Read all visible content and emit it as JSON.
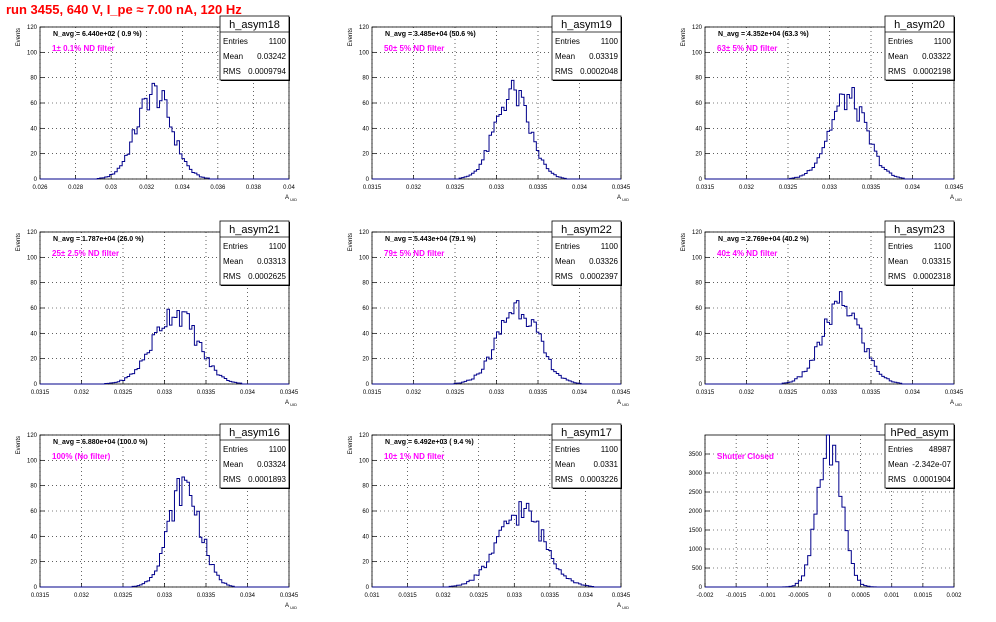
{
  "window_title": "run 3455,   640 V, I_pe ≈ 7.00 nA, 120 Hz",
  "colors": {
    "hist": "#00008b",
    "annotation": "#ff00ff",
    "title": "#ff0000",
    "axis": "#000000"
  },
  "chart_data": [
    {
      "type": "bar",
      "name": "h_asym18",
      "stats": {
        "entries": "1100",
        "mean": "0.03242",
        "rms": "0.0009794"
      },
      "navg": "N_avg = 6.440e+02 ( 0.9 %)",
      "filter": "1± 0.1% ND filter",
      "ylabel": "Events",
      "xlabel": "A_UID",
      "xlim": [
        0.026,
        0.04
      ],
      "ylim": [
        0,
        120
      ],
      "xticks": [
        "0.026",
        "0.028",
        "0.03",
        "0.032",
        "0.034",
        "0.036",
        "0.038",
        "0.04"
      ],
      "yticks": [
        "0",
        "20",
        "40",
        "60",
        "80",
        "100",
        "120"
      ],
      "mean": 0.03242,
      "rms": 0.0009794,
      "peak": 68,
      "bins": 100
    },
    {
      "type": "bar",
      "name": "h_asym19",
      "stats": {
        "entries": "1100",
        "mean": "0.03319",
        "rms": "0.0002048"
      },
      "navg": "N_avg = 3.485e+04 (50.6 %)",
      "filter": "50± 5% ND filter",
      "ylabel": "Events",
      "xlabel": "A_UID",
      "xlim": [
        0.0315,
        0.0345
      ],
      "ylim": [
        0,
        120
      ],
      "xticks": [
        "0.0315",
        "0.032",
        "0.0325",
        "0.033",
        "0.0335",
        "0.034",
        "0.0345"
      ],
      "yticks": [
        "0",
        "20",
        "40",
        "60",
        "80",
        "100",
        "120"
      ],
      "mean": 0.03319,
      "rms": 0.0002048,
      "peak": 68,
      "bins": 100
    },
    {
      "type": "bar",
      "name": "h_asym20",
      "stats": {
        "entries": "1100",
        "mean": "0.03322",
        "rms": "0.0002198"
      },
      "navg": "N_avg = 4.352e+04 (63.3 %)",
      "filter": "63± 5% ND filter",
      "ylabel": "Events",
      "xlabel": "A_UID",
      "xlim": [
        0.0315,
        0.0345
      ],
      "ylim": [
        0,
        120
      ],
      "xticks": [
        "0.0315",
        "0.032",
        "0.0325",
        "0.033",
        "0.0335",
        "0.034",
        "0.0345"
      ],
      "yticks": [
        "0",
        "20",
        "40",
        "60",
        "80",
        "100",
        "120"
      ],
      "mean": 0.03322,
      "rms": 0.0002198,
      "peak": 64,
      "bins": 100
    },
    {
      "type": "bar",
      "name": "h_asym21",
      "stats": {
        "entries": "1100",
        "mean": "0.03313",
        "rms": "0.0002625"
      },
      "navg": "N_avg = 1.787e+04 (26.0 %)",
      "filter": "25± 2.5% ND filter",
      "ylabel": "Events",
      "xlabel": "A_UID",
      "xlim": [
        0.0315,
        0.0345
      ],
      "ylim": [
        0,
        120
      ],
      "xticks": [
        "0.0315",
        "0.032",
        "0.0325",
        "0.033",
        "0.0335",
        "0.034",
        "0.0345"
      ],
      "yticks": [
        "0",
        "20",
        "40",
        "60",
        "80",
        "100",
        "120"
      ],
      "mean": 0.03313,
      "rms": 0.0002625,
      "peak": 57,
      "bins": 100
    },
    {
      "type": "bar",
      "name": "h_asym22",
      "stats": {
        "entries": "1100",
        "mean": "0.03326",
        "rms": "0.0002397"
      },
      "navg": "N_avg = 5.443e+04 (79.1 %)",
      "filter": "79± 5% ND filter",
      "ylabel": "Events",
      "xlabel": "A_UID",
      "xlim": [
        0.0315,
        0.0345
      ],
      "ylim": [
        0,
        120
      ],
      "xticks": [
        "0.0315",
        "0.032",
        "0.0325",
        "0.033",
        "0.0335",
        "0.034",
        "0.0345"
      ],
      "yticks": [
        "0",
        "20",
        "40",
        "60",
        "80",
        "100",
        "120"
      ],
      "mean": 0.03326,
      "rms": 0.0002397,
      "peak": 62,
      "bins": 100
    },
    {
      "type": "bar",
      "name": "h_asym23",
      "stats": {
        "entries": "1100",
        "mean": "0.03315",
        "rms": "0.0002318"
      },
      "navg": "N_avg = 2.769e+04 (40.2 %)",
      "filter": "40± 4% ND filter",
      "ylabel": "Events",
      "xlabel": "A_UID",
      "xlim": [
        0.0315,
        0.0345
      ],
      "ylim": [
        0,
        120
      ],
      "xticks": [
        "0.0315",
        "0.032",
        "0.0325",
        "0.033",
        "0.0335",
        "0.034",
        "0.0345"
      ],
      "yticks": [
        "0",
        "20",
        "40",
        "60",
        "80",
        "100",
        "120"
      ],
      "mean": 0.03315,
      "rms": 0.0002318,
      "peak": 63,
      "bins": 100
    },
    {
      "type": "bar",
      "name": "h_asym16",
      "stats": {
        "entries": "1100",
        "mean": "0.03324",
        "rms": "0.0001893"
      },
      "navg": "N_avg = 6.880e+04 (100.0 %)",
      "filter": "100% (No filter)",
      "ylabel": "Events",
      "xlabel": "A_UID",
      "xlim": [
        0.0315,
        0.0345
      ],
      "ylim": [
        0,
        120
      ],
      "xticks": [
        "0.0315",
        "0.032",
        "0.0325",
        "0.033",
        "0.0335",
        "0.034",
        "0.0345"
      ],
      "yticks": [
        "0",
        "20",
        "40",
        "60",
        "80",
        "100",
        "120"
      ],
      "mean": 0.03324,
      "rms": 0.0001893,
      "peak": 80,
      "bins": 100
    },
    {
      "type": "bar",
      "name": "h_asym17",
      "stats": {
        "entries": "1100",
        "mean": "0.0331",
        "rms": "0.0003226"
      },
      "navg": "N_avg = 6.492e+03 ( 9.4 %)",
      "filter": "10± 1% ND filter",
      "ylabel": "Events",
      "xlabel": "A_UID",
      "xlim": [
        0.031,
        0.0345
      ],
      "ylim": [
        0,
        120
      ],
      "xticks": [
        "0.031",
        "0.0315",
        "0.032",
        "0.0325",
        "0.033",
        "0.0335",
        "0.034",
        "0.0345"
      ],
      "yticks": [
        "0",
        "20",
        "40",
        "60",
        "80",
        "100",
        "120"
      ],
      "mean": 0.0331,
      "rms": 0.0003226,
      "peak": 60,
      "bins": 100
    },
    {
      "type": "bar",
      "name": "hPed_asym",
      "stats": {
        "entries": "48987",
        "mean": "-2.342e-07",
        "rms": "0.0001904"
      },
      "navg": "",
      "filter": "Shutter Closed",
      "ylabel": "",
      "xlabel": "",
      "xlim": [
        -0.002,
        0.002
      ],
      "ylim": [
        0,
        4000
      ],
      "xticks": [
        "-0.002",
        "-0.0015",
        "-0.001",
        "-0.0005",
        "0",
        "0.0005",
        "0.001",
        "0.0015",
        "0.002"
      ],
      "yticks": [
        "0",
        "500",
        "1000",
        "1500",
        "2000",
        "2500",
        "3000",
        "3500"
      ],
      "mean": 0.0,
      "rms": 0.0001904,
      "peak": 3700,
      "bins": 80
    }
  ]
}
